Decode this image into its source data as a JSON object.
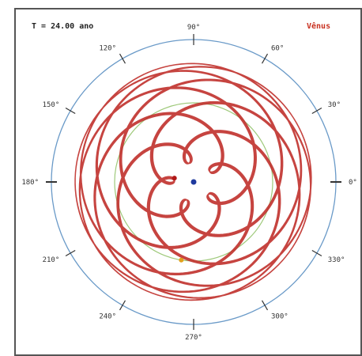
{
  "header": {
    "time_label": "T = 24.00 ano",
    "planet_label": "Vênus"
  },
  "chart_data": {
    "type": "line",
    "title": "",
    "xlabel": "",
    "ylabel": "",
    "grid": false,
    "angle_labels": [
      "0°",
      "30°",
      "60°",
      "90°",
      "120°",
      "150°",
      "180°",
      "210°",
      "240°",
      "270°",
      "300°",
      "330°"
    ],
    "angle_values": [
      0,
      30,
      60,
      90,
      120,
      150,
      180,
      210,
      240,
      270,
      300,
      330
    ],
    "series": [
      {
        "kind": "orbit",
        "radius_au": 1.0,
        "color": "#9ec97a"
      },
      {
        "kind": "geocentric-path",
        "a_earth_au": 1.0,
        "a_venus_au": 0.723,
        "t_years": 24.0,
        "color": "#c0302b"
      }
    ],
    "markers": [
      {
        "name": "center",
        "color": "#1f3a9e"
      },
      {
        "name": "venus",
        "color": "#b01818"
      },
      {
        "name": "orbit-point",
        "color": "#e2a11d"
      }
    ],
    "colors": {
      "ring": "#6a9ac8",
      "path": "#c0302b",
      "planet_label": "#c8301f"
    }
  }
}
